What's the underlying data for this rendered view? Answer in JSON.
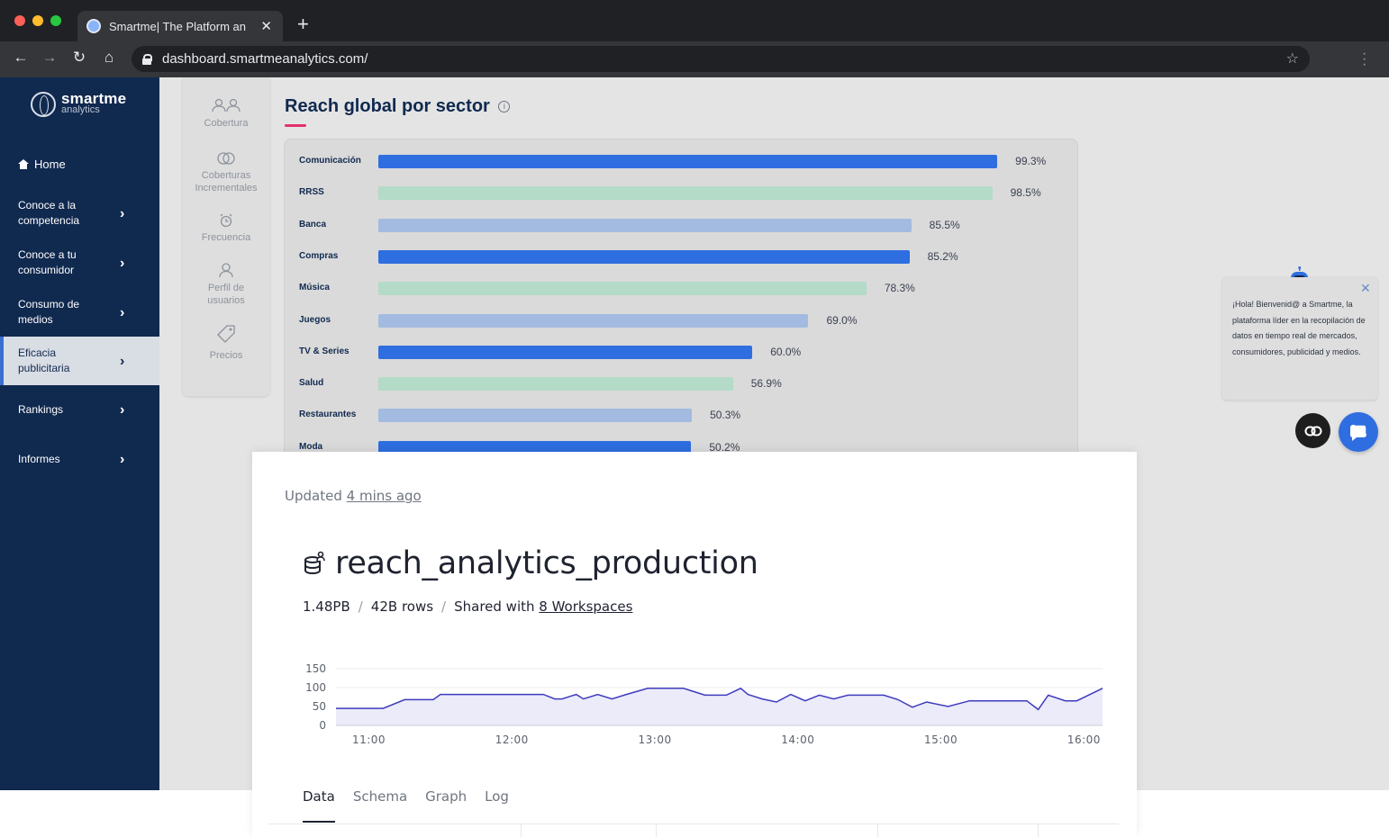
{
  "browser": {
    "tab_title": "Smartme| The Platform an",
    "url": "dashboard.smartmeanalytics.com/"
  },
  "sidebar": {
    "brand": "smartme",
    "brand_sub": "analytics",
    "items": [
      {
        "label": "Home"
      },
      {
        "label": "Conoce a la competencia"
      },
      {
        "label": "Conoce a tu consumidor"
      },
      {
        "label": "Consumo de medios"
      },
      {
        "label": "Eficacia publicitaria"
      },
      {
        "label": "Rankings"
      },
      {
        "label": "Informes"
      }
    ]
  },
  "subnav": {
    "items": [
      {
        "label": "Cobertura"
      },
      {
        "label": "Coberturas Incrementales"
      },
      {
        "label": "Frecuencia"
      },
      {
        "label": "Perfil de usuarios"
      },
      {
        "label": "Precios"
      }
    ]
  },
  "reach": {
    "title": "Reach global por sector",
    "colors": {
      "dark": "#2f6ee0",
      "mint": "#b4dac8",
      "light": "#a3bbe0"
    },
    "chart_data": {
      "type": "bar",
      "orientation": "horizontal",
      "title": "Reach global por sector",
      "categories": [
        "Comunicación",
        "RRSS",
        "Banca",
        "Compras",
        "Música",
        "Juegos",
        "TV & Series",
        "Salud",
        "Restaurantes",
        "Moda"
      ],
      "values": [
        99.3,
        98.5,
        85.5,
        85.2,
        78.3,
        69.0,
        60.0,
        56.9,
        50.3,
        50.2
      ],
      "labels": [
        "99.3%",
        "98.5%",
        "85.5%",
        "85.2%",
        "78.3%",
        "69.0%",
        "60.0%",
        "56.9%",
        "50.3%",
        "50.2%"
      ],
      "color_keys": [
        "dark",
        "mint",
        "light",
        "dark",
        "mint",
        "light",
        "dark",
        "mint",
        "light",
        "dark"
      ],
      "xlim": [
        0,
        100
      ],
      "grid": false
    }
  },
  "chat": {
    "message": "¡Hola! Bienvenid@ a Smartme, la plataforma líder en la recopilación de datos en tiempo real de mercados, consumidores, publicidad y medios."
  },
  "dataset": {
    "updated_prefix": "Updated",
    "updated_link": "4 mins ago",
    "name": "reach_analytics_production",
    "size": "1.48PB",
    "rows": "42B rows",
    "shared_prefix": "Shared with",
    "shared_link": "8 Workspaces",
    "tabs": [
      {
        "label": "Data"
      },
      {
        "label": "Schema"
      },
      {
        "label": "Graph"
      },
      {
        "label": "Log"
      }
    ],
    "chart_data": {
      "type": "area",
      "x_ticks": [
        "11:00",
        "12:00",
        "13:00",
        "14:00",
        "15:00",
        "16:00"
      ],
      "y_ticks": [
        0,
        50,
        100,
        150
      ],
      "ylim": [
        0,
        150
      ],
      "xlim": [
        10.77,
        16.13
      ],
      "x": [
        10.77,
        10.95,
        11.1,
        11.25,
        11.3,
        11.45,
        11.5,
        11.65,
        11.8,
        12.0,
        12.08,
        12.22,
        12.3,
        12.35,
        12.45,
        12.5,
        12.6,
        12.7,
        12.8,
        12.95,
        13.05,
        13.2,
        13.35,
        13.4,
        13.5,
        13.6,
        13.65,
        13.75,
        13.85,
        13.95,
        14.05,
        14.15,
        14.25,
        14.35,
        14.5,
        14.6,
        14.7,
        14.8,
        14.9,
        15.05,
        15.2,
        15.3,
        15.4,
        15.5,
        15.6,
        15.68,
        15.75,
        15.87,
        15.95,
        16.13
      ],
      "y": [
        45,
        45,
        45,
        68,
        68,
        68,
        82,
        82,
        82,
        82,
        82,
        82,
        70,
        70,
        82,
        70,
        82,
        70,
        82,
        98,
        98,
        98,
        80,
        80,
        80,
        98,
        82,
        70,
        62,
        82,
        65,
        80,
        70,
        80,
        80,
        80,
        68,
        48,
        62,
        50,
        65,
        65,
        65,
        65,
        65,
        42,
        80,
        65,
        65,
        98
      ]
    }
  }
}
